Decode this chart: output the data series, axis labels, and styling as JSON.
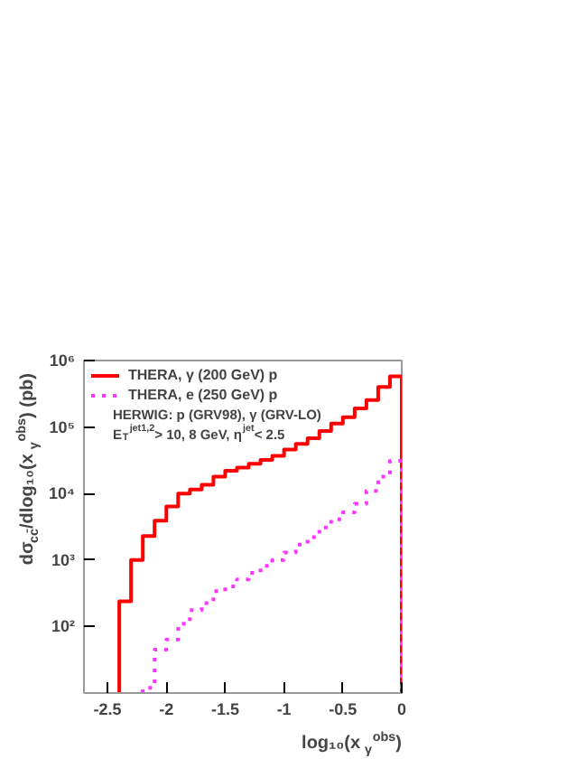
{
  "chart_data": {
    "type": "histogram",
    "xlabel": "log₁₀(x$_{γ}$$^{obs}$)",
    "ylabel": "dσ$_{cc̄}$/dlog₁₀(x$_{γ}$$^{obs}$) (pb)",
    "bins": [
      -2.4,
      -2.3,
      -2.2,
      -2.1,
      -2.0,
      -1.9,
      -1.8,
      -1.7,
      -1.6,
      -1.5,
      -1.4,
      -1.3,
      -1.2,
      -1.1,
      -1.0,
      -0.9,
      -0.8,
      -0.7,
      -0.6,
      -0.5,
      -0.4,
      -0.3,
      -0.2,
      -0.1,
      0.0
    ],
    "series": [
      {
        "name": "THERA, γ (200 GeV) p",
        "color": "#ff0000",
        "line_style": "solid",
        "values": [
          240,
          1000,
          2300,
          3900,
          6400,
          10000,
          11500,
          13500,
          18000,
          22000,
          24500,
          28000,
          32000,
          37000,
          46000,
          56000,
          68000,
          87000,
          113000,
          140000,
          190000,
          255000,
          400000,
          580000
        ]
      },
      {
        "name": "THERA, e (250 GeV) p",
        "color": "#ff33ff",
        "line_style": "dotted",
        "bins": [
          -2.2,
          -2.1,
          -2.0,
          -1.9,
          -1.8,
          -1.7,
          -1.6,
          -1.5,
          -1.4,
          -1.3,
          -1.2,
          -1.1,
          -1.0,
          -0.9,
          -0.8,
          -0.7,
          -0.6,
          -0.5,
          -0.4,
          -0.3,
          -0.2,
          -0.1,
          0.0
        ],
        "values": [
          12,
          45,
          64,
          110,
          177,
          225,
          340,
          400,
          510,
          640,
          815,
          1000,
          1300,
          1700,
          2200,
          3100,
          4100,
          5200,
          7000,
          11000,
          18000,
          31000
        ]
      }
    ],
    "annotations": [
      "HERWIG: p (GRV98), γ (GRV-LO)",
      "E$_{T}$$^{jet1,2}$> 10, 8 GeV, η$^{jet}$< 2.5"
    ],
    "log": "y",
    "xlim": [
      -2.7,
      0
    ],
    "ylim": [
      10,
      1000000
    ],
    "xticks": [
      -2.5,
      -2,
      -1.5,
      -1,
      -0.5,
      0
    ],
    "yticks": [
      {
        "value": 100,
        "label": "10²"
      },
      {
        "value": 1000,
        "label": "10³"
      },
      {
        "value": 10000,
        "label": "10⁴"
      },
      {
        "value": 100000,
        "label": "10⁵"
      },
      {
        "value": 1000000,
        "label": "10⁶"
      }
    ],
    "legend": "top left",
    "grid": false
  }
}
